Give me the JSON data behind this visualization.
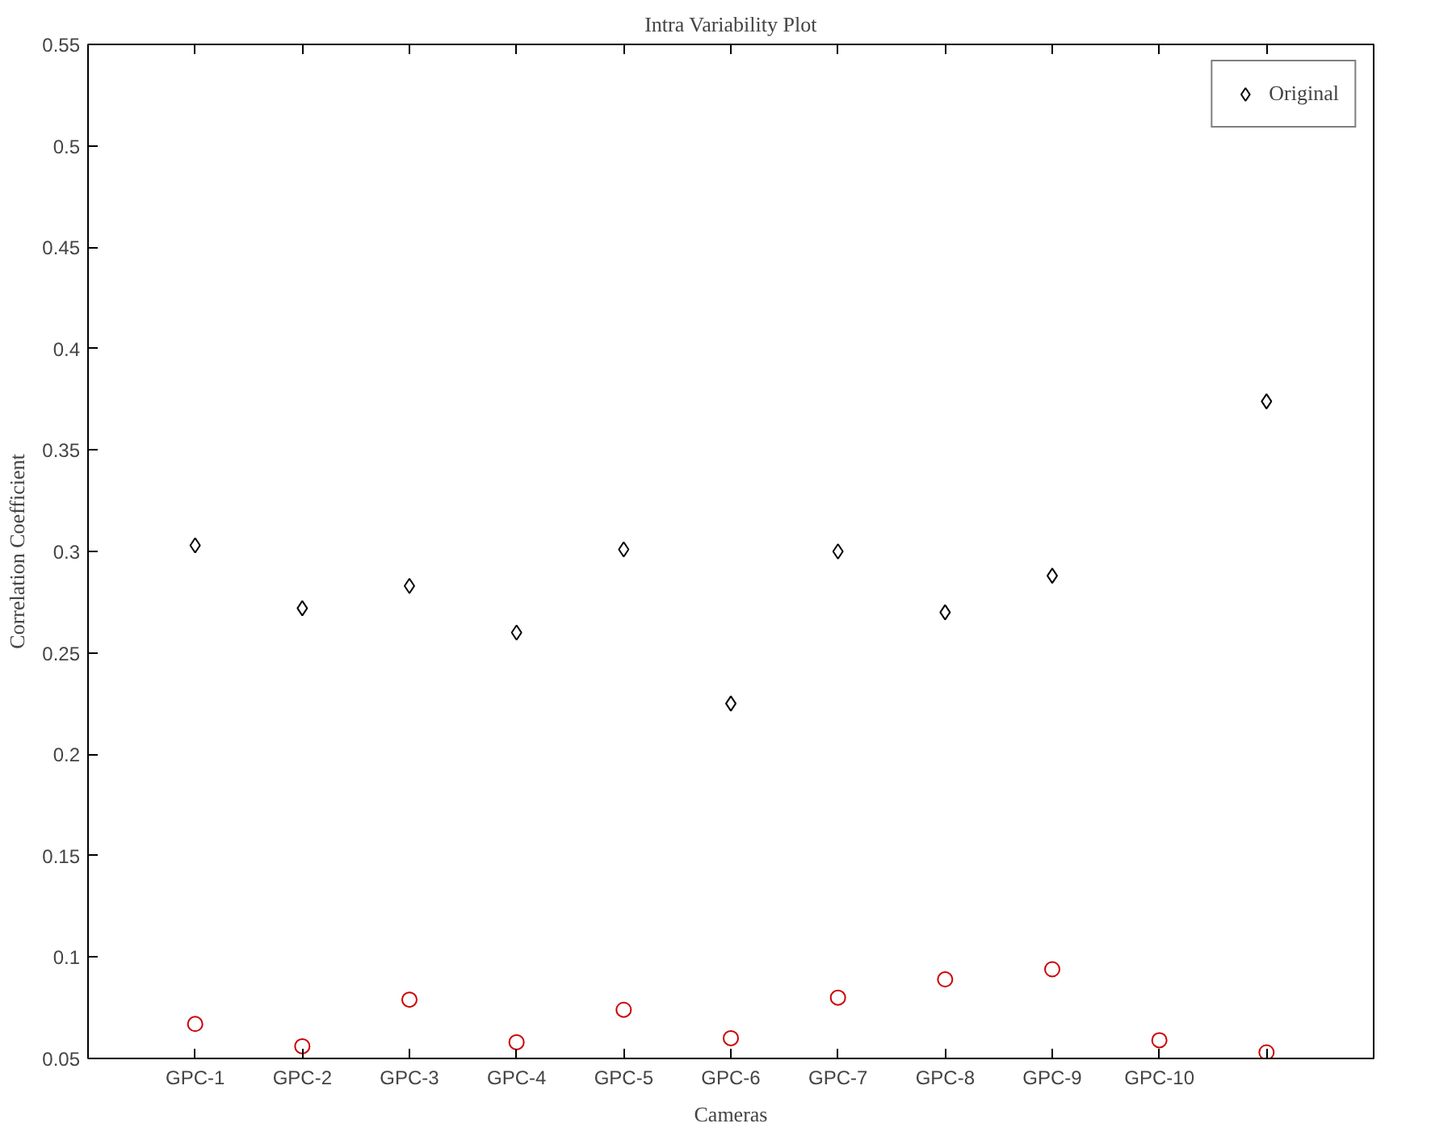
{
  "chart_data": {
    "type": "scatter",
    "title": "Intra Variability Plot",
    "xlabel": "Cameras",
    "ylabel": "Correlation Coefficient",
    "categories": [
      "GPC-1",
      "GPC-2",
      "GPC-3",
      "GPC-4",
      "GPC-5",
      "GPC-6",
      "GPC-7",
      "GPC-8",
      "GPC-9",
      "GPC-10",
      null
    ],
    "series": [
      {
        "name": "Original",
        "color": "#000000",
        "marker": "diamond",
        "values": [
          0.303,
          0.272,
          0.283,
          0.26,
          0.301,
          0.225,
          0.3,
          0.27,
          0.288,
          null,
          0.374
        ]
      },
      {
        "color": "#cc0000",
        "marker": "circle",
        "values": [
          0.067,
          0.056,
          0.079,
          0.058,
          0.074,
          0.06,
          0.08,
          0.089,
          0.094,
          0.059,
          0.053
        ]
      }
    ],
    "ylim": [
      0.05,
      0.55
    ],
    "yticks": [
      0.05,
      0.1,
      0.15,
      0.2,
      0.25,
      0.3,
      0.35,
      0.4,
      0.45,
      0.5,
      0.55
    ],
    "grid": false,
    "legend": "top right"
  }
}
